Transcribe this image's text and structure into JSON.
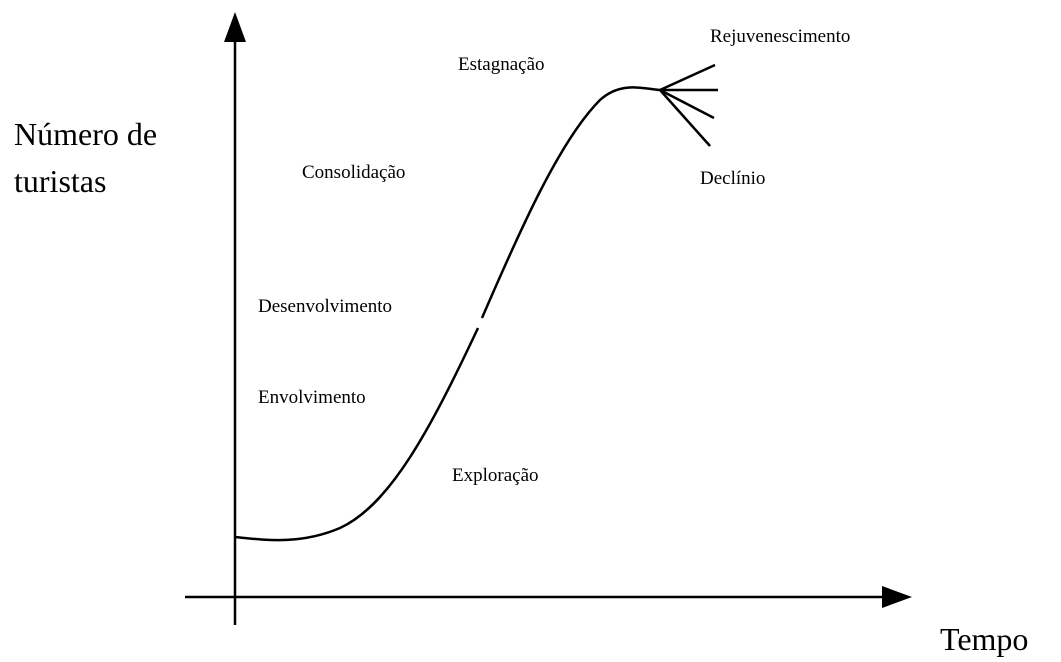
{
  "axes": {
    "y_label": [
      "Número de",
      "turistas"
    ],
    "x_label": "Tempo"
  },
  "stages": [
    "Rejuvenescimento",
    "Estagnação",
    "Consolidação",
    "Declínio",
    "Desenvolvimento",
    "Envolvimento",
    "Exploração"
  ]
}
